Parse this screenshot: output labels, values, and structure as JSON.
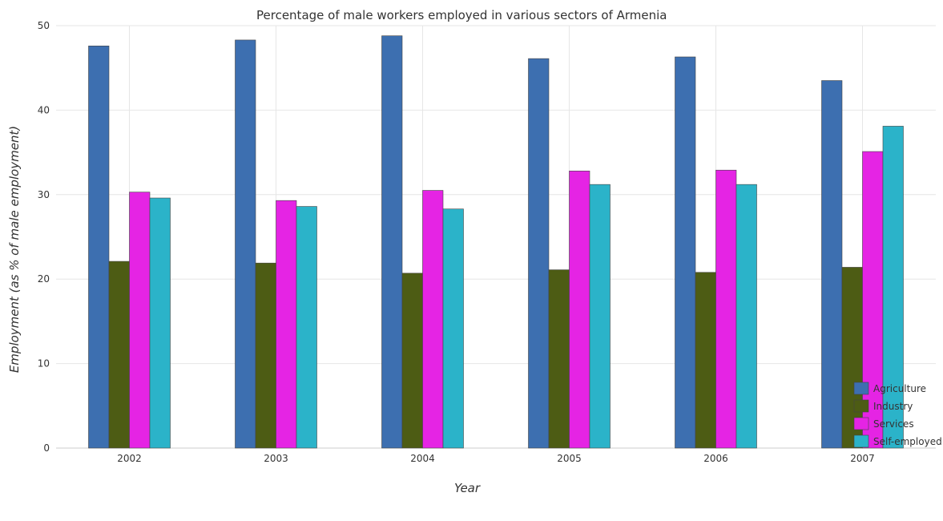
{
  "chart_data": {
    "type": "bar",
    "title": "Percentage of male workers employed in various sectors of Armenia",
    "xlabel": "Year",
    "ylabel": "Employment (as % of male employment)",
    "categories": [
      "2002",
      "2003",
      "2004",
      "2005",
      "2006",
      "2007"
    ],
    "ylim": [
      0,
      50
    ],
    "yticks": [
      "0",
      "10",
      "20",
      "30",
      "40",
      "50"
    ],
    "grid": true,
    "legend_position": "bottom-right",
    "series": [
      {
        "name": "Agriculture",
        "color": "#3d6fb0",
        "values": [
          47.6,
          48.3,
          48.8,
          46.1,
          46.3,
          43.5
        ]
      },
      {
        "name": "Industry",
        "color": "#4d5c14",
        "values": [
          22.1,
          21.9,
          20.7,
          21.1,
          20.8,
          21.4
        ]
      },
      {
        "name": "Services",
        "color": "#e524e4",
        "values": [
          30.3,
          29.3,
          30.5,
          32.8,
          32.9,
          35.1
        ]
      },
      {
        "name": "Self-employed",
        "color": "#2bb3c9",
        "values": [
          29.6,
          28.6,
          28.3,
          31.2,
          31.2,
          38.1
        ]
      }
    ]
  }
}
